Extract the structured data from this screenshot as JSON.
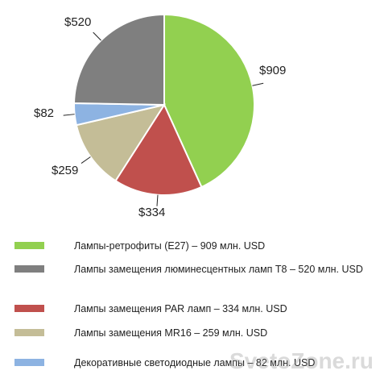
{
  "chart_data": {
    "type": "pie",
    "categories": [
      "Лампы-ретрофиты (E27) – 909 млн. USD",
      "Лампы замещения люминесцентных ламп T8 – 520 млн. USD",
      "Лампы замещения PAR ламп – 334 млн. USD",
      "Лампы замещения MR16 – 259 млн. USD",
      "Декоративные светодиодные лампы – 82 млн. USD"
    ],
    "values": [
      909,
      520,
      334,
      259,
      82
    ],
    "value_labels": [
      "$909",
      "$520",
      "$334",
      "$259",
      "$82"
    ],
    "colors": [
      "#92d050",
      "#7f7f7f",
      "#c0504d",
      "#c4bd97",
      "#8db3e2"
    ]
  },
  "watermark": "SvetoZone.ru"
}
